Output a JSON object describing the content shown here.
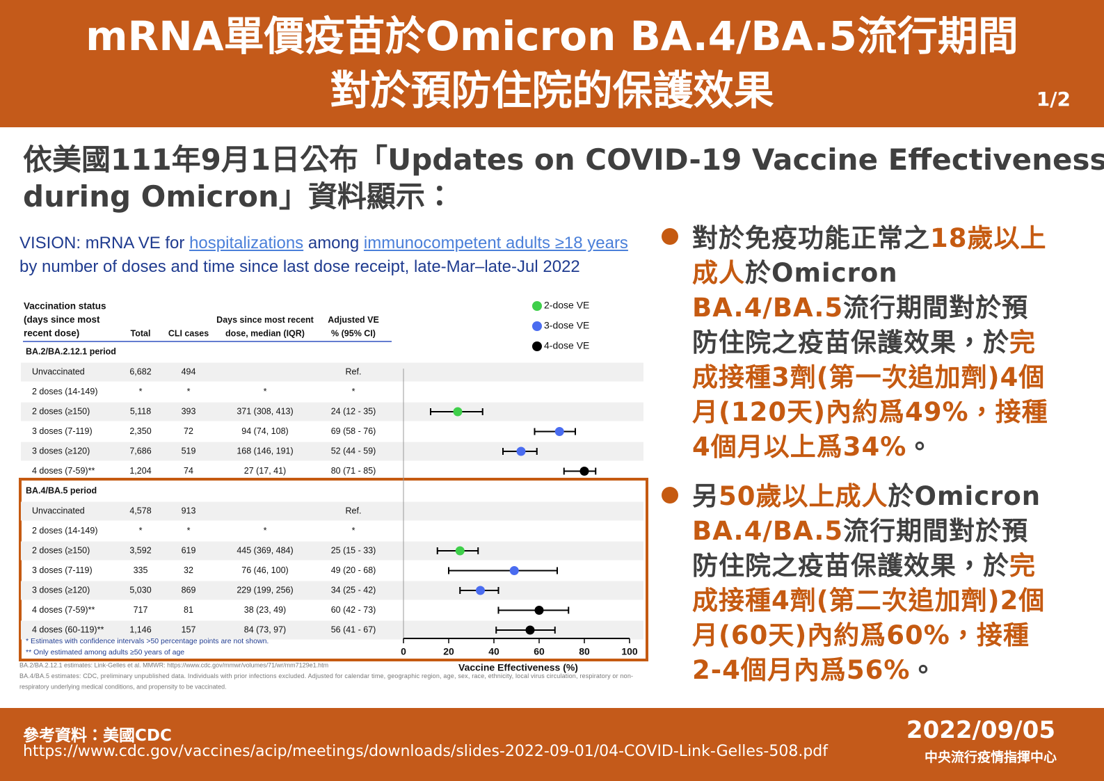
{
  "header": {
    "title": [
      "mRNA單價疫苗於Omicron BA.4/BA.5流行期間",
      "對於預防住院的保護效果"
    ],
    "page": "1/2"
  },
  "intro": [
    "依美國111年9月1日公布「Updates on COVID-19 Vaccine Effectiveness",
    "during Omicron」資料顯示："
  ],
  "chart_data": {
    "type": "forest",
    "title": [
      "VISION: mRNA VE for",
      "hospitalizations",
      "among",
      "immunocompetent adults ≥18 years"
    ],
    "subtitle": "by number of doses and time since last dose receipt, late-Mar–late-Jul 2022",
    "columns": [
      [
        "Vaccination status",
        "(days since most",
        "recent dose)"
      ],
      [
        "Total"
      ],
      [
        "CLI cases"
      ],
      [
        "Days since most recent",
        "dose, median (IQR)"
      ],
      [
        "Adjusted VE",
        "% (95% CI)"
      ]
    ],
    "legend": [
      {
        "name": "2-dose VE",
        "color": "#3ecf4a"
      },
      {
        "name": "3-dose VE",
        "color": "#4a6cf0"
      },
      {
        "name": "4-dose VE",
        "color": "#000000"
      }
    ],
    "groups": [
      {
        "name": "BA.2/BA.2.12.1 period",
        "rows": [
          {
            "cells": [
              "Unvaccinated",
              "6,682",
              "494",
              null,
              "Ref."
            ]
          },
          {
            "cells": [
              "2 doses (14-149)",
              "*",
              "*",
              "*",
              "*"
            ]
          },
          {
            "cells": [
              "2 doses (≥150)",
              "5,118",
              "393",
              "371 (308, 413)",
              "24 (12 - 35)"
            ],
            "ve": 24,
            "ci": [
              12,
              35
            ],
            "color": "#3ecf4a"
          },
          {
            "cells": [
              "3 doses (7-119)",
              "2,350",
              "72",
              "94 (74, 108)",
              "69 (58 - 76)"
            ],
            "ve": 69,
            "ci": [
              58,
              76
            ],
            "color": "#4a6cf0"
          },
          {
            "cells": [
              "3 doses (≥120)",
              "7,686",
              "519",
              "168 (146, 191)",
              "52 (44 - 59)"
            ],
            "ve": 52,
            "ci": [
              44,
              59
            ],
            "color": "#4a6cf0"
          },
          {
            "cells": [
              "4 doses (7-59)**",
              "1,204",
              "74",
              "27 (17, 41)",
              "80 (71 - 85)"
            ],
            "ve": 80,
            "ci": [
              71,
              85
            ],
            "color": "#000000"
          }
        ]
      },
      {
        "name": "BA.4/BA.5 period",
        "rows": [
          {
            "cells": [
              "Unvaccinated",
              "4,578",
              "913",
              null,
              "Ref."
            ]
          },
          {
            "cells": [
              "2 doses (14-149)",
              "*",
              "*",
              "*",
              "*"
            ]
          },
          {
            "cells": [
              "2 doses (≥150)",
              "3,592",
              "619",
              "445 (369, 484)",
              "25 (15 - 33)"
            ],
            "ve": 25,
            "ci": [
              15,
              33
            ],
            "color": "#3ecf4a"
          },
          {
            "cells": [
              "3 doses (7-119)",
              "335",
              "32",
              "76 (46, 100)",
              "49 (20 - 68)"
            ],
            "ve": 49,
            "ci": [
              20,
              68
            ],
            "color": "#4a6cf0"
          },
          {
            "cells": [
              "3 doses (≥120)",
              "5,030",
              "869",
              "229 (199, 256)",
              "34 (25 - 42)"
            ],
            "ve": 34,
            "ci": [
              25,
              42
            ],
            "color": "#4a6cf0"
          },
          {
            "cells": [
              "4 doses (7-59)**",
              "717",
              "81",
              "38 (23, 49)",
              "60 (42 - 73)"
            ],
            "ve": 60,
            "ci": [
              42,
              73
            ],
            "color": "#000000"
          },
          {
            "cells": [
              "4 doses (60-119)**",
              "1,146",
              "157",
              "84 (73, 97)",
              "56 (41 - 67)"
            ],
            "ve": 56,
            "ci": [
              41,
              67
            ],
            "color": "#000000"
          }
        ]
      }
    ],
    "xlim": [
      0,
      100
    ],
    "xticks": [
      0,
      20,
      40,
      60,
      80,
      100
    ],
    "xlabel": "Vaccine Effectiveness (%)",
    "footnotes": [
      "* Estimates with confidence intervals >50 percentage points are not shown.",
      "** Only estimated among adults ≥50 years of age"
    ],
    "sources": [
      "BA.2/BA.2.12.1 estimates: Link-Gelles et al. MMWR: https://www.cdc.gov/mmwr/volumes/71/wr/mm7129e1.htm",
      "BA.4/BA.5 estimates: CDC, preliminary unpublished data. Individuals with prior infections excluded. Adjusted for calendar time, geographic region, age, sex, race, ethnicity, local virus circulation, respiratory or non-",
      "respiratory underlying medical conditions, and propensity to be vaccinated."
    ]
  },
  "bullets": [
    [
      {
        "text": "對於免疫功能正常之"
      },
      {
        "text": "18歲以上成人",
        "highlight": true
      },
      {
        "text": "於Omicron "
      },
      {
        "text": "BA.4/BA.5",
        "highlight": true
      },
      {
        "text": "流行期間對於預防住院之疫苗保護效果，於"
      },
      {
        "text": "完成接種3劑(第一次追加劑)4個月(120天)內約爲49%，接種4個月以上爲34%",
        "highlight": true
      },
      {
        "text": "。"
      }
    ],
    [
      {
        "text": "另"
      },
      {
        "text": "50歲以上成人",
        "highlight": true
      },
      {
        "text": "於Omicron "
      },
      {
        "text": "BA.4/BA.5",
        "highlight": true
      },
      {
        "text": "流行期間對於預防住院之疫苗保護效果，於"
      },
      {
        "text": "完成接種4劑(第二次追加劑)2個月(60天)內約爲60%，接種2-4個月內爲56%",
        "highlight": true
      },
      {
        "text": "。"
      }
    ]
  ],
  "footer": {
    "reference": "參考資料：美國CDC",
    "url": "https://www.cdc.gov/vaccines/acip/meetings/downloads/slides-2022-09-01/04-COVID-Link-Gelles-508.pdf",
    "date": "2022/09/05",
    "org": "中央流行疫情指揮中心"
  }
}
